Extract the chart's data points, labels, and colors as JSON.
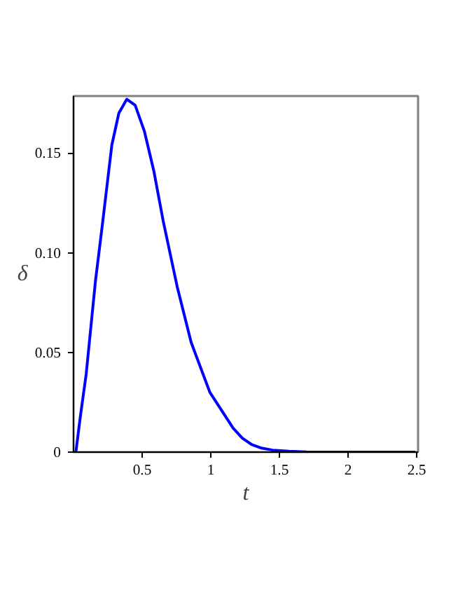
{
  "chart_data": {
    "type": "line",
    "xlabel": "t",
    "ylabel": "δ",
    "x": [
      0.017,
      0.05,
      0.092,
      0.16,
      0.21,
      0.279,
      0.33,
      0.388,
      0.449,
      0.516,
      0.585,
      0.653,
      0.755,
      0.857,
      0.993,
      1.163,
      1.23,
      1.3,
      1.37,
      1.45,
      1.57,
      1.7,
      1.9,
      2.1,
      2.3,
      2.49
    ],
    "series": [
      {
        "color": "#0000ff",
        "values": [
          0,
          0.018,
          0.039,
          0.086,
          0.114,
          0.154,
          0.17,
          0.177,
          0.174,
          0.161,
          0.141,
          0.116,
          0.083,
          0.055,
          0.03,
          0.012,
          0.007,
          0.0037,
          0.002,
          0.001,
          0.0004,
          0.0001,
          0,
          0,
          0,
          0
        ]
      }
    ],
    "xlim": [
      0,
      2.51
    ],
    "ylim": [
      0,
      0.1786
    ],
    "xticks": [
      0.5,
      1,
      1.5,
      2,
      2.5
    ],
    "yticks": [
      0,
      0.05,
      {
        "value": 0.1,
        "label": "0.10"
      },
      0.15
    ],
    "grid": false,
    "marker": "none",
    "line_style": "solid"
  }
}
